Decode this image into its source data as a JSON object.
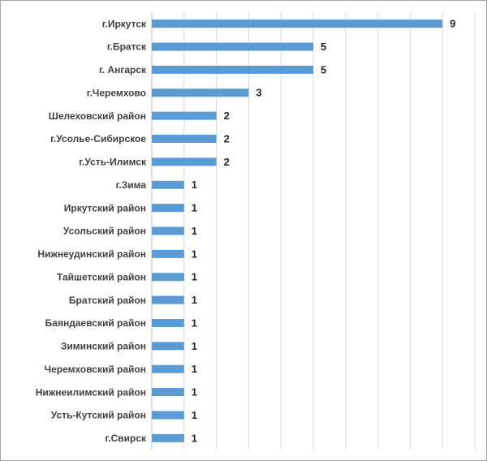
{
  "chart_data": {
    "type": "bar",
    "orientation": "horizontal",
    "categories": [
      "г.Иркутск",
      "г.Братск",
      "г. Ангарск",
      "г.Черемхово",
      "Шелеховский район",
      "г.Усолье-Сибирское",
      "г.Усть-Илимск",
      "г.Зима",
      "Иркутский район",
      "Усольский район",
      "Нижнеудинский район",
      "Тайшетский район",
      "Братский район",
      "Баяндаевский район",
      "Зиминский район",
      "Черемховский район",
      "Нижнеилимский район",
      "Усть-Кутский район",
      "г.Свирск"
    ],
    "values": [
      9,
      5,
      5,
      3,
      2,
      2,
      2,
      1,
      1,
      1,
      1,
      1,
      1,
      1,
      1,
      1,
      1,
      1,
      1
    ],
    "color": "#5b9bd5",
    "xlim": [
      0,
      10
    ],
    "xticks": [
      0,
      1,
      2,
      3,
      4,
      5,
      6,
      7,
      8,
      9,
      10
    ],
    "grid": true
  }
}
